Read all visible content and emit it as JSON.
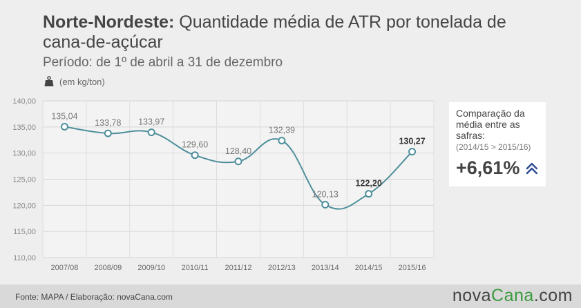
{
  "title": {
    "bold": "Norte-Nordeste:",
    "rest": "Quantidade média de ATR por tonelada de",
    "line2": "cana-de-açúcar"
  },
  "subtitle": "Período: de 1º de abril a 31 de dezembro",
  "unit": "(em kg/ton)",
  "card": {
    "title_line1": "Comparação da",
    "title_line2": "média entre as",
    "title_line3": "safras:",
    "range": "(2014/15 > 2015/16)",
    "value": "+6,61%",
    "arrow_icon": "double-chevron-up-icon",
    "arrow_color": "#2e4e93"
  },
  "footer": {
    "source": "Fonte: MAPA / Elaboração:  novaCana.com",
    "brand_prefix": "nova",
    "brand_name": "Cana",
    "brand_suffix": ".com",
    "brand_accent_color": "#3a9a3e"
  },
  "chart_data": {
    "type": "line",
    "categories": [
      "2007/08",
      "2008/09",
      "2009/10",
      "2010/11",
      "2011/12",
      "2012/13",
      "2013/14",
      "2014/15",
      "2015/16"
    ],
    "values": [
      135.04,
      133.78,
      133.97,
      129.6,
      128.4,
      132.39,
      120.13,
      122.2,
      130.27
    ],
    "data_labels": [
      "135,04",
      "133,78",
      "133,97",
      "129,60",
      "128,40",
      "132,39",
      "120,13",
      "122,20",
      "130,27"
    ],
    "yticks": [
      110,
      115,
      120,
      125,
      130,
      135,
      140
    ],
    "ytick_labels": [
      "110,00",
      "115,00",
      "120,00",
      "125,00",
      "130,00",
      "135,00",
      "140,00"
    ],
    "ylim": [
      110,
      140
    ],
    "grid": true,
    "line_color": "#4e8f9b",
    "smooth": true
  }
}
